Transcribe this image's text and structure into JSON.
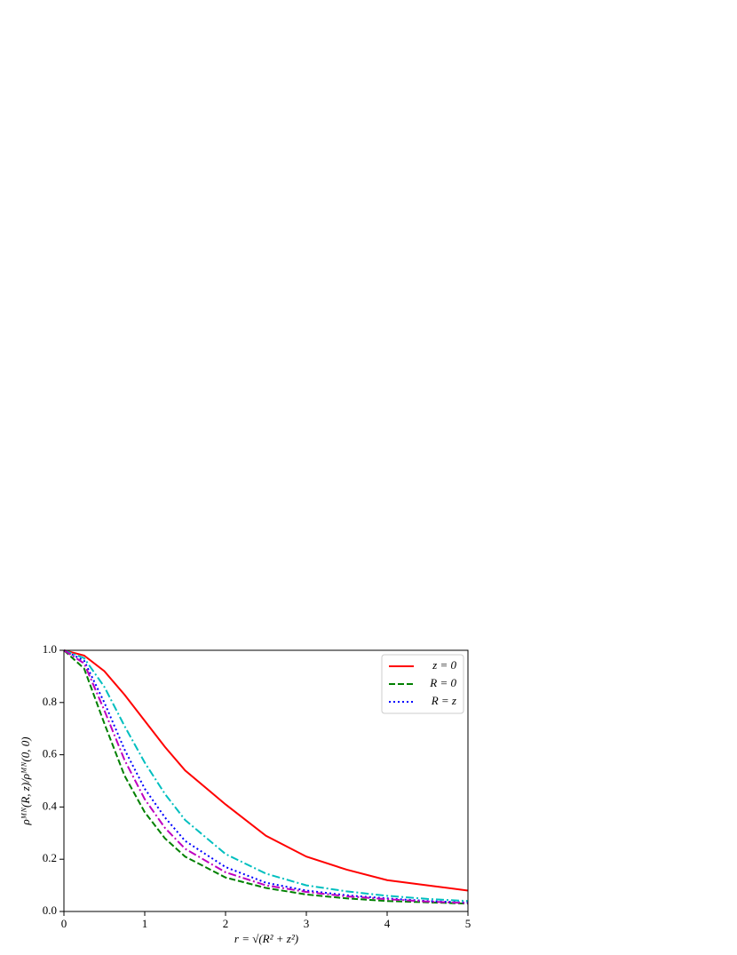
{
  "chart_data": {
    "type": "line",
    "x_label": "r = √(R² + z²)",
    "y_label": "ρᴹᴺ(R, z)/ρᴹᴺ(0, 0)",
    "x": [
      0,
      0.25,
      0.5,
      0.75,
      1,
      1.25,
      1.5,
      2,
      2.5,
      3,
      3.5,
      4,
      4.5,
      5
    ],
    "series": [
      {
        "name": "z = 0",
        "color": "#ff0000",
        "dash": "solid",
        "values": [
          1,
          0.98,
          0.92,
          0.83,
          0.73,
          0.63,
          0.54,
          0.41,
          0.29,
          0.21,
          0.16,
          0.12,
          0.1,
          0.08
        ]
      },
      {
        "name": "R = 0",
        "color": "#008000",
        "dash": "dashed",
        "values": [
          1,
          0.93,
          0.72,
          0.52,
          0.38,
          0.28,
          0.21,
          0.13,
          0.09,
          0.065,
          0.05,
          0.04,
          0.035,
          0.03
        ]
      },
      {
        "name": "R = z",
        "color": "#0000ff",
        "dash": "dotted",
        "values": [
          1,
          0.96,
          0.8,
          0.62,
          0.47,
          0.36,
          0.27,
          0.17,
          0.11,
          0.08,
          0.062,
          0.05,
          0.04,
          0.034
        ]
      },
      {
        "color": "#00bfbf",
        "dash": "dashdot",
        "values": [
          1,
          0.97,
          0.86,
          0.71,
          0.57,
          0.45,
          0.35,
          0.22,
          0.145,
          0.1,
          0.077,
          0.06,
          0.048,
          0.04
        ]
      },
      {
        "color": "#bf00bf",
        "dash": "dashdot",
        "values": [
          1,
          0.95,
          0.77,
          0.58,
          0.43,
          0.32,
          0.24,
          0.15,
          0.1,
          0.075,
          0.058,
          0.047,
          0.038,
          0.032
        ]
      }
    ],
    "xlim": [
      0,
      5
    ],
    "xticks": [
      0,
      1,
      2,
      3,
      4,
      5
    ],
    "ylim": [
      0,
      1
    ],
    "yticks": [
      {
        "value": 0,
        "label": "0.0"
      },
      0.2,
      0.4,
      0.6,
      0.8,
      {
        "value": 1,
        "label": "1.0"
      }
    ],
    "legend": "upper right"
  }
}
